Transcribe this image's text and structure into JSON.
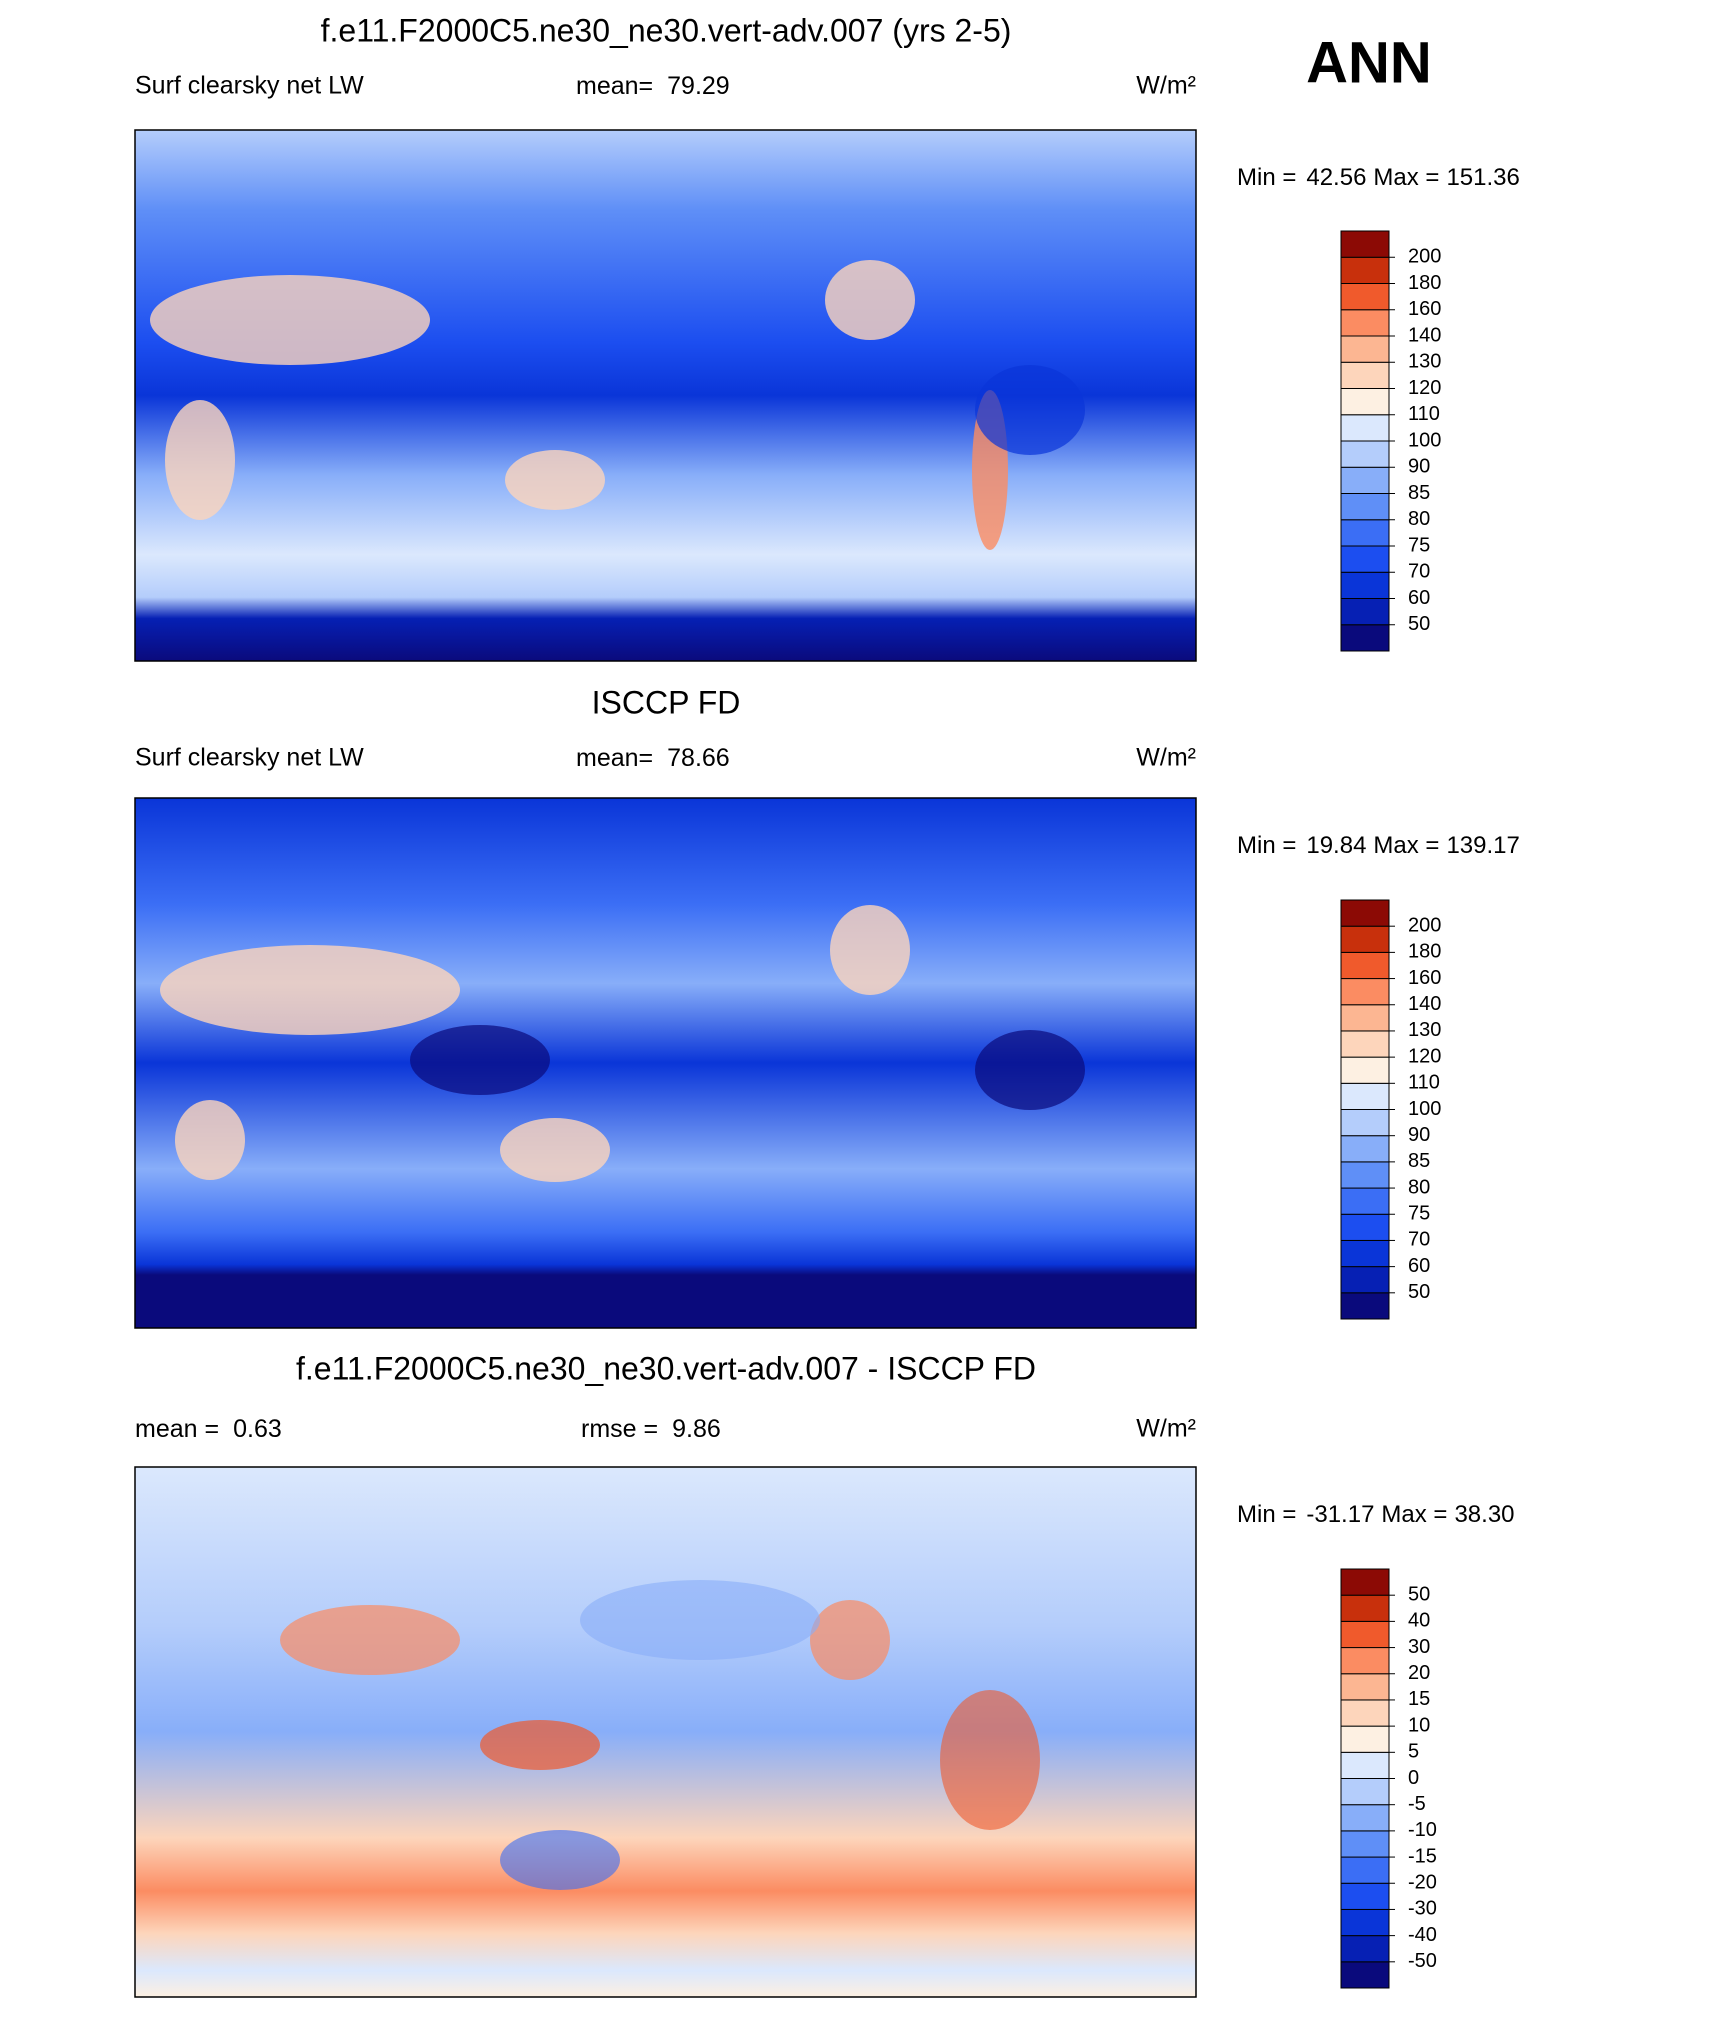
{
  "chart_data": [
    {
      "type": "contour-map",
      "title": "f.e11.F2000C5.ne30_ne30.vert-adv.007 (yrs 2-5)",
      "annotation": "ANN",
      "left_label": "Surf clearsky net LW",
      "stats": [
        {
          "label": "mean=",
          "value": 79.29
        }
      ],
      "units": "W/m²",
      "min_label": "Min =",
      "min": 42.56,
      "max_label": "Max =",
      "max": 151.36,
      "levels": [
        50,
        60,
        70,
        75,
        80,
        85,
        90,
        100,
        110,
        120,
        130,
        140,
        160,
        180,
        200
      ],
      "colors": [
        "#0a0a7c",
        "#0620b4",
        "#0a35d8",
        "#1c4ef0",
        "#3b6ef5",
        "#5f8ff7",
        "#88aef9",
        "#b4cdfb",
        "#dbe8fd",
        "#fdf0e2",
        "#fdd5bb",
        "#fcb692",
        "#fb8c62",
        "#f05a2c",
        "#c8300c",
        "#8c0a05"
      ]
    },
    {
      "type": "contour-map",
      "title": "ISCCP FD",
      "left_label": "Surf clearsky net LW",
      "stats": [
        {
          "label": "mean=",
          "value": 78.66
        }
      ],
      "units": "W/m²",
      "min_label": "Min =",
      "min": 19.84,
      "max_label": "Max =",
      "max": 139.17,
      "levels": [
        50,
        60,
        70,
        75,
        80,
        85,
        90,
        100,
        110,
        120,
        130,
        140,
        160,
        180,
        200
      ],
      "colors": [
        "#0a0a7c",
        "#0620b4",
        "#0a35d8",
        "#1c4ef0",
        "#3b6ef5",
        "#5f8ff7",
        "#88aef9",
        "#b4cdfb",
        "#dbe8fd",
        "#fdf0e2",
        "#fdd5bb",
        "#fcb692",
        "#fb8c62",
        "#f05a2c",
        "#c8300c",
        "#8c0a05"
      ]
    },
    {
      "type": "contour-map",
      "title": "f.e11.F2000C5.ne30_ne30.vert-adv.007 - ISCCP FD",
      "stats": [
        {
          "label": "mean =",
          "value": 0.63
        },
        {
          "label": "rmse =",
          "value": 9.86
        }
      ],
      "units": "W/m²",
      "min_label": "Min =",
      "min": -31.17,
      "max_label": "Max =",
      "max": {
        "value": 38.3,
        "label": "38.30"
      },
      "levels": [
        -50,
        -40,
        -30,
        -20,
        -15,
        -10,
        -5,
        0,
        5,
        10,
        15,
        20,
        30,
        40,
        50
      ],
      "colors": [
        "#0a0a7c",
        "#0620b4",
        "#0a35d8",
        "#1c4ef0",
        "#3b6ef5",
        "#5f8ff7",
        "#88aef9",
        "#b4cdfb",
        "#dbe8fd",
        "#fdf0e2",
        "#fdd5bb",
        "#fcb692",
        "#fb8c62",
        "#f05a2c",
        "#c8300c",
        "#8c0a05"
      ]
    }
  ]
}
